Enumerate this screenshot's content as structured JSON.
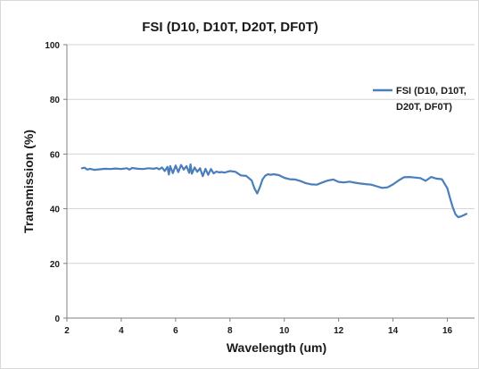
{
  "chart_data": {
    "type": "line",
    "title": "FSI (D10, D10T, D20T, DF0T)",
    "xlabel": "Wavelength (um)",
    "ylabel": "Transmission (%)",
    "xlim": [
      2,
      17
    ],
    "ylim": [
      0,
      100
    ],
    "xticks": [
      "2",
      "4",
      "6",
      "8",
      "10",
      "12",
      "14",
      "16"
    ],
    "yticks": [
      "0",
      "20",
      "40",
      "60",
      "80",
      "100"
    ],
    "grid": "horizontal",
    "legend_position": "right",
    "legend_lines": [
      "FSI (D10, D10T,",
      "D20T, DF0T)"
    ],
    "series": [
      {
        "name": "FSI (D10, D10T, D20T, DF0T)",
        "color": "#4a7ebb",
        "x": [
          2.55,
          2.65,
          2.75,
          2.85,
          3.0,
          3.2,
          3.4,
          3.6,
          3.8,
          4.0,
          4.2,
          4.3,
          4.4,
          4.6,
          4.8,
          5.0,
          5.2,
          5.3,
          5.4,
          5.5,
          5.6,
          5.7,
          5.75,
          5.8,
          5.9,
          6.0,
          6.1,
          6.2,
          6.3,
          6.4,
          6.5,
          6.55,
          6.6,
          6.7,
          6.8,
          6.9,
          7.0,
          7.1,
          7.2,
          7.3,
          7.4,
          7.5,
          7.6,
          7.7,
          7.8,
          8.0,
          8.2,
          8.4,
          8.6,
          8.8,
          8.9,
          9.0,
          9.1,
          9.2,
          9.3,
          9.4,
          9.5,
          9.6,
          9.8,
          10.0,
          10.2,
          10.4,
          10.6,
          10.8,
          11.0,
          11.2,
          11.4,
          11.6,
          11.8,
          12.0,
          12.2,
          12.4,
          12.6,
          12.8,
          13.0,
          13.2,
          13.4,
          13.6,
          13.8,
          14.0,
          14.2,
          14.4,
          14.6,
          14.8,
          15.0,
          15.2,
          15.4,
          15.6,
          15.8,
          16.0,
          16.1,
          16.2,
          16.3,
          16.4,
          16.5,
          16.6,
          16.7
        ],
        "y": [
          54.8,
          55.0,
          54.3,
          54.6,
          54.2,
          54.4,
          54.6,
          54.5,
          54.7,
          54.5,
          54.8,
          54.3,
          54.9,
          54.6,
          54.5,
          54.8,
          54.6,
          54.9,
          54.4,
          55.1,
          53.8,
          55.3,
          52.5,
          55.6,
          53.0,
          55.8,
          53.4,
          56.0,
          54.3,
          55.6,
          53.1,
          56.2,
          52.8,
          55.1,
          53.5,
          54.8,
          51.9,
          54.6,
          52.4,
          54.5,
          52.9,
          53.6,
          53.3,
          53.4,
          53.2,
          53.8,
          53.5,
          52.2,
          52.0,
          50.3,
          47.5,
          45.6,
          47.8,
          50.8,
          52.1,
          52.6,
          52.4,
          52.6,
          52.3,
          51.3,
          50.8,
          50.7,
          50.1,
          49.3,
          48.9,
          48.8,
          49.6,
          50.3,
          50.7,
          49.8,
          49.6,
          49.9,
          49.5,
          49.2,
          49.0,
          48.8,
          48.2,
          47.6,
          47.8,
          48.9,
          50.3,
          51.5,
          51.6,
          51.4,
          51.2,
          50.2,
          51.6,
          51.0,
          50.8,
          47.5,
          43.8,
          40.5,
          37.9,
          36.9,
          37.2,
          37.6,
          38.1
        ]
      }
    ]
  }
}
